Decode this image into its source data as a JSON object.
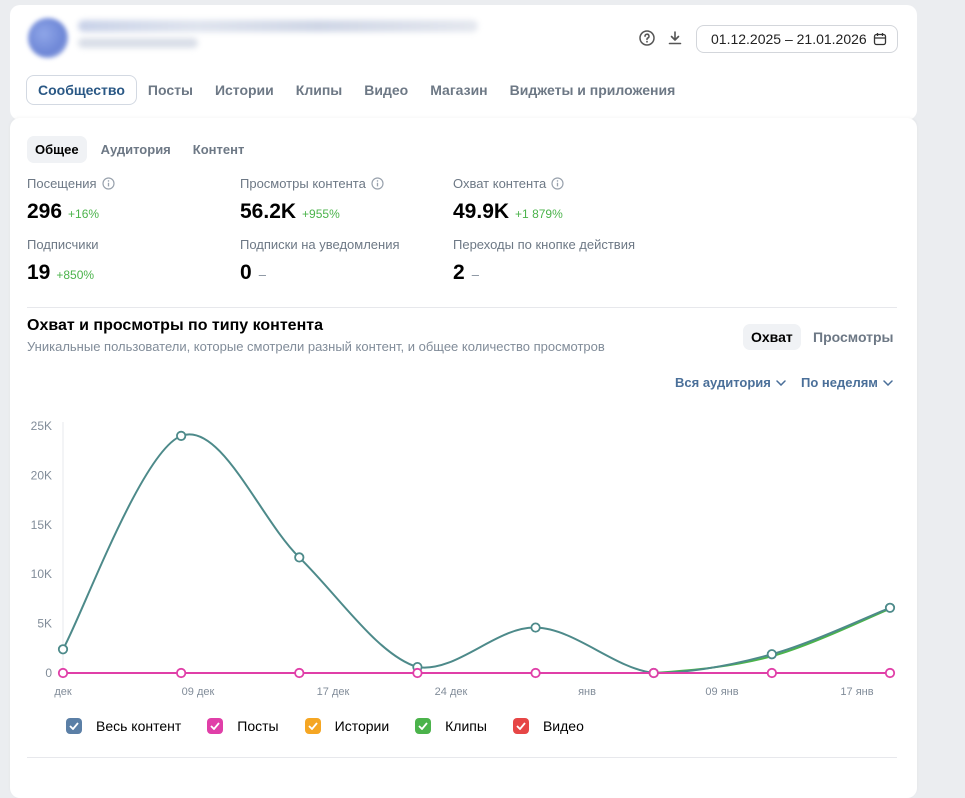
{
  "header": {
    "date_range": "01.12.2025 – 21.01.2026"
  },
  "nav_tabs": [
    {
      "label": "Сообщество",
      "active": true
    },
    {
      "label": "Посты",
      "active": false
    },
    {
      "label": "Истории",
      "active": false
    },
    {
      "label": "Клипы",
      "active": false
    },
    {
      "label": "Видео",
      "active": false
    },
    {
      "label": "Магазин",
      "active": false
    },
    {
      "label": "Виджеты и приложения",
      "active": false
    }
  ],
  "sub_tabs": [
    {
      "label": "Общее",
      "active": true
    },
    {
      "label": "Аудитория",
      "active": false
    },
    {
      "label": "Контент",
      "active": false
    }
  ],
  "stats": [
    {
      "label": "Посещения",
      "value": "296",
      "delta": "+16%",
      "info": true
    },
    {
      "label": "Просмотры контента",
      "value": "56.2K",
      "delta": "+955%",
      "info": true
    },
    {
      "label": "Охват контента",
      "value": "49.9K",
      "delta": "+1 879%",
      "info": true
    },
    {
      "label": "Подписчики",
      "value": "19",
      "delta": "+850%",
      "info": false
    },
    {
      "label": "Подписки на уведомления",
      "value": "0",
      "delta": "–",
      "info": false
    },
    {
      "label": "Переходы по кнопке действия",
      "value": "2",
      "delta": "–",
      "info": false
    }
  ],
  "chart_section": {
    "title": "Охват и просмотры по типу контента",
    "subtitle": "Уникальные пользователи, которые смотрели разный контент, и общее количество просмотров",
    "toggle": [
      {
        "label": "Охват",
        "active": true
      },
      {
        "label": "Просмотры",
        "active": false
      }
    ],
    "audience_dropdown": "Вся аудитория",
    "period_dropdown": "По неделям"
  },
  "colors": {
    "all_content": "#4d8a8a",
    "posts": "#e03fa8",
    "stories": "#f5a623",
    "clips": "#4bb34b",
    "video": "#e64646",
    "positive": "#4bb34b",
    "accent": "#2a5885"
  },
  "chart_data": {
    "type": "line",
    "x_tick_labels": [
      "дек",
      "09 дек",
      "17 дек",
      "24 дек",
      "янв",
      "09 янв",
      "17 янв"
    ],
    "y_tick_labels": [
      "25K",
      "20K",
      "15K",
      "10K",
      "5K",
      "0"
    ],
    "ylim": [
      0,
      25000
    ],
    "x_points": 8,
    "series": [
      {
        "name": "Весь контент",
        "color": "#4d8a8a",
        "values": [
          2400,
          24000,
          11700,
          600,
          4600,
          0,
          1900,
          6600
        ]
      },
      {
        "name": "Посты",
        "color": "#e03fa8",
        "values": [
          0,
          0,
          0,
          0,
          0,
          0,
          0,
          0
        ]
      },
      {
        "name": "Истории",
        "color": "#f5a623",
        "values": [
          0,
          0,
          0,
          0,
          0,
          0,
          0,
          0
        ]
      },
      {
        "name": "Клипы",
        "color": "#4bb34b",
        "values": [
          0,
          0,
          0,
          0,
          0,
          0,
          1700,
          6500
        ]
      },
      {
        "name": "Видео",
        "color": "#e64646",
        "values": [
          0,
          0,
          0,
          0,
          0,
          0,
          0,
          0
        ]
      }
    ],
    "legend": [
      "Весь контент",
      "Посты",
      "Истории",
      "Клипы",
      "Видео"
    ],
    "grid": false
  }
}
